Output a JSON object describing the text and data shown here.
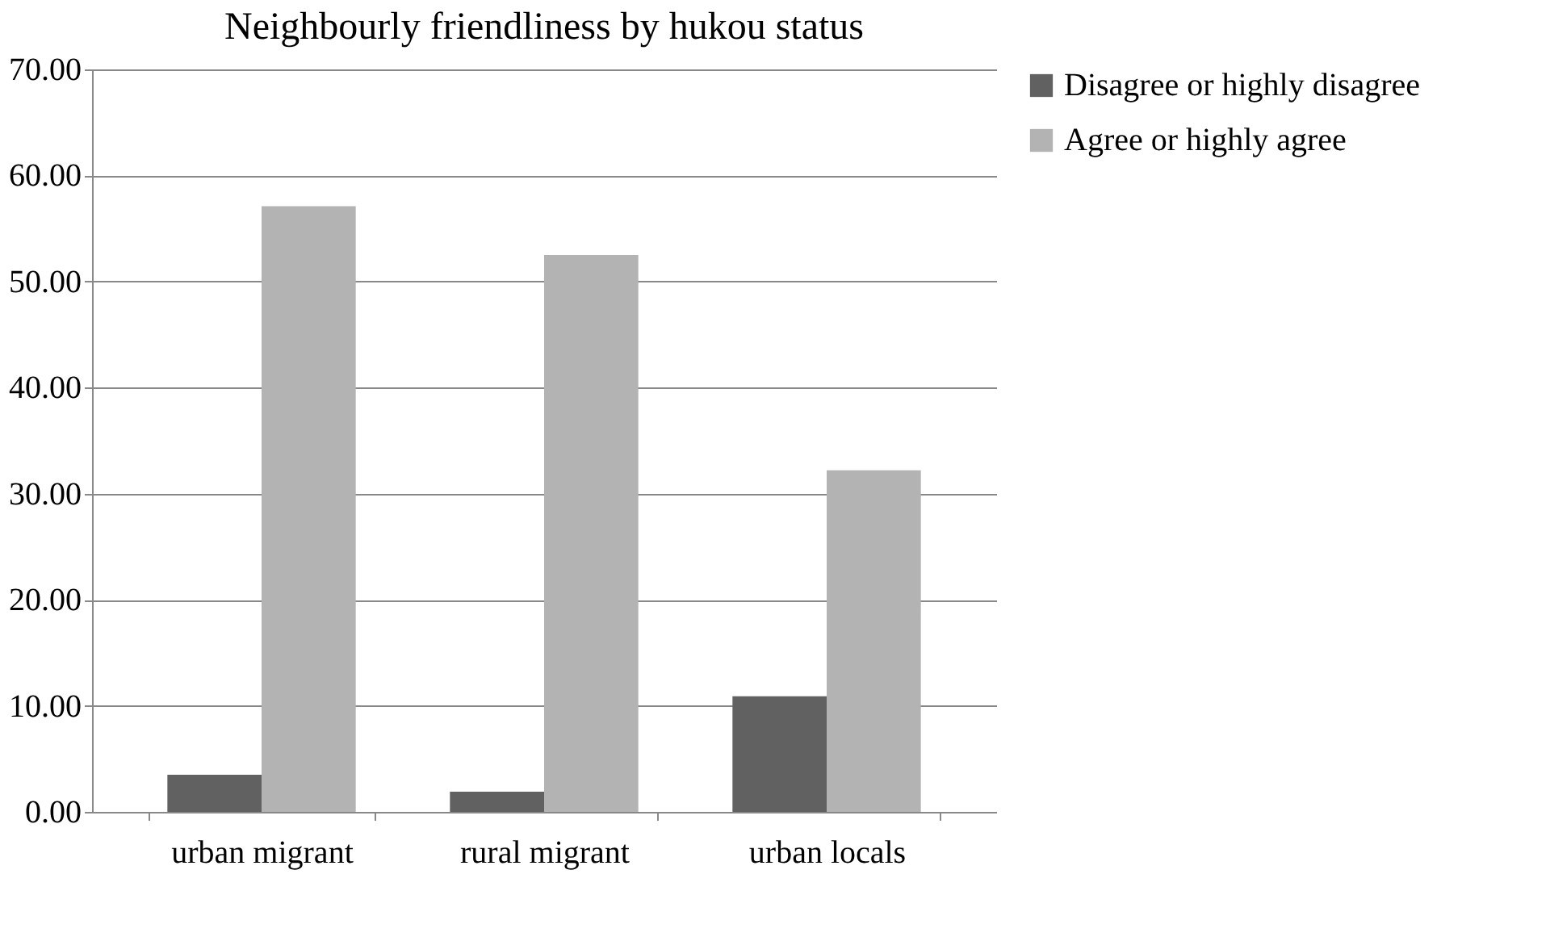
{
  "chart_data": {
    "type": "bar",
    "title": "Neighbourly friendliness by hukou status",
    "categories": [
      "urban migrant",
      "rural migrant",
      "urban locals"
    ],
    "series": [
      {
        "name": "Disagree or highly disagree",
        "color": "#616161",
        "values": [
          3.5,
          1.9,
          10.9
        ]
      },
      {
        "name": "Agree or highly agree",
        "color": "#b3b3b3",
        "values": [
          57.1,
          52.5,
          32.2
        ]
      }
    ],
    "ylim": [
      0,
      70
    ],
    "yticks": [
      {
        "value": 0,
        "label": "0.00"
      },
      {
        "value": 10,
        "label": "10.00"
      },
      {
        "value": 20,
        "label": "20.00"
      },
      {
        "value": 30,
        "label": "30.00"
      },
      {
        "value": 40,
        "label": "40.00"
      },
      {
        "value": 50,
        "label": "50.00"
      },
      {
        "value": 60,
        "label": "60.00"
      },
      {
        "value": 70,
        "label": "70.00"
      }
    ],
    "grid": "y",
    "legend": "right"
  }
}
